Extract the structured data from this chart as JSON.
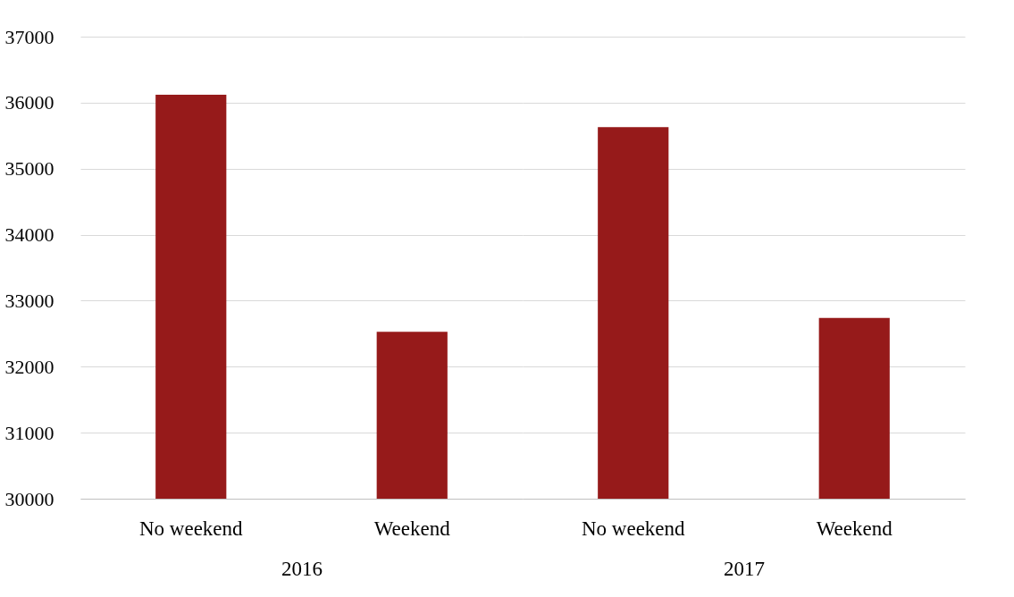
{
  "chart_data": [
    {
      "type": "bar",
      "xlabel": "2016",
      "categories": [
        "No weekend",
        "Weekend"
      ],
      "values": [
        36120,
        32530
      ],
      "color": "#961a1a",
      "ylim": [
        30000,
        37000
      ],
      "yticks": [
        30000,
        31000,
        32000,
        33000,
        34000,
        35000,
        36000,
        37000
      ],
      "grid": "y",
      "legend": false
    },
    {
      "type": "bar",
      "xlabel": "2017",
      "categories": [
        "No weekend",
        "Weekend"
      ],
      "values": [
        35630,
        32740
      ],
      "color": "#961a1a",
      "ylim": [
        30000,
        37000
      ],
      "yticks": [
        30000,
        31000,
        32000,
        33000,
        34000,
        35000,
        36000,
        37000
      ],
      "grid": "y",
      "legend": false,
      "tick_labels": "x"
    }
  ]
}
